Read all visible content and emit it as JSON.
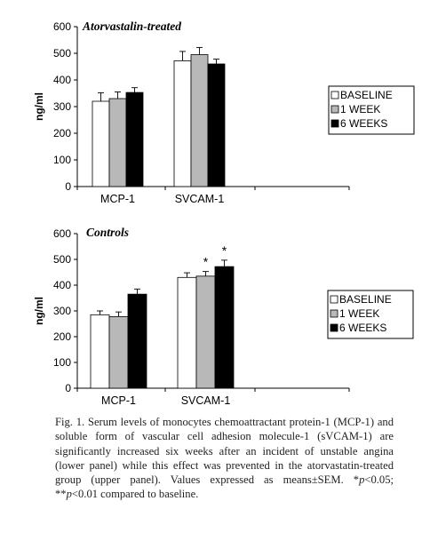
{
  "chart_data": [
    {
      "type": "bar",
      "title": "Atorvastalin-treated",
      "ylabel": "ng/ml",
      "ylim": [
        0,
        600
      ],
      "yticks": [
        "0",
        "100",
        "200",
        "300",
        "400",
        "500",
        "600"
      ],
      "categories": [
        "MCP-1",
        "SVCAM-1"
      ],
      "series": [
        {
          "name": "BASELINE",
          "values": [
            320,
            472
          ],
          "errors": [
            32,
            35
          ],
          "color": "#ffffff"
        },
        {
          "name": "1 WEEK",
          "values": [
            330,
            495
          ],
          "errors": [
            25,
            27
          ],
          "color": "#b8b8b8"
        },
        {
          "name": "6 WEEKS",
          "values": [
            353,
            460
          ],
          "errors": [
            18,
            18
          ],
          "color": "#000000"
        }
      ],
      "annotations": [
        "",
        "",
        "",
        "",
        "",
        ""
      ],
      "legend": "right",
      "grid": false
    },
    {
      "type": "bar",
      "title": "Controls",
      "ylabel": "ng/ml",
      "ylim": [
        0,
        600
      ],
      "yticks": [
        "0",
        "100",
        "200",
        "300",
        "400",
        "500",
        "600"
      ],
      "categories": [
        "MCP-1",
        "SVCAM-1"
      ],
      "series": [
        {
          "name": "BASELINE",
          "values": [
            285,
            430
          ],
          "errors": [
            15,
            18
          ],
          "color": "#ffffff"
        },
        {
          "name": "1 WEEK",
          "values": [
            278,
            435
          ],
          "errors": [
            18,
            18
          ],
          "color": "#b8b8b8"
        },
        {
          "name": "6 WEEKS",
          "values": [
            365,
            472
          ],
          "errors": [
            20,
            25
          ],
          "color": "#000000"
        }
      ],
      "annotations": [
        "",
        "",
        "",
        "",
        "*",
        "*"
      ],
      "legend": "right",
      "grid": false
    }
  ],
  "caption": {
    "lines": [
      [
        "Fig. 1. Serum levels of monocytes chemoattractant protein-1 (MCP-1) and"
      ],
      [
        "soluble form of vascular cell adhesion molecule-1 (sVCAM-1) are"
      ],
      [
        "significantly increased six weeks after an incident of unstable angina"
      ],
      [
        "(lower panel) while this effect was prevented in the atorvastatin-treated"
      ],
      [
        "group (upper panel). Values expressed as means±SEM. *",
        {
          "i": "p"
        },
        "<0.05;"
      ],
      [
        "**",
        {
          "i": "p"
        },
        "<0.01 compared to baseline."
      ]
    ]
  }
}
